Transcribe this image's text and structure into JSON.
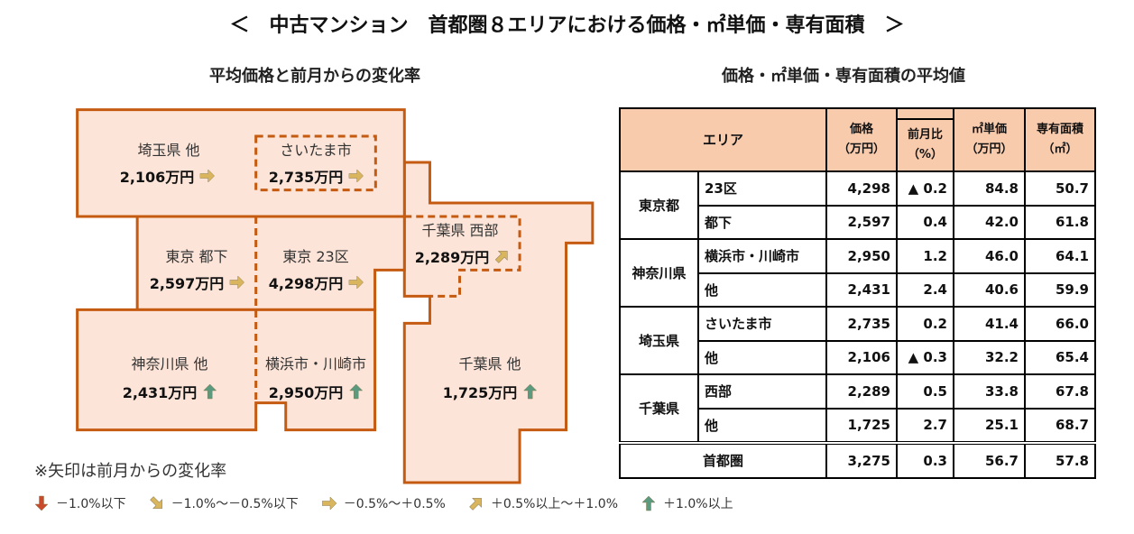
{
  "title": "＜　中古マンション　首都圏８エリアにおける価格・㎡単価・専有面積　＞",
  "map": {
    "subtitle": "平均価格と前月からの変化率",
    "regions": [
      {
        "name": "埼玉県 他",
        "value": "2,106万円",
        "arrow": "flat"
      },
      {
        "name": "さいたま市",
        "value": "2,735万円",
        "arrow": "flat"
      },
      {
        "name": "東京 都下",
        "value": "2,597万円",
        "arrow": "flat"
      },
      {
        "name": "東京 23区",
        "value": "4,298万円",
        "arrow": "flat"
      },
      {
        "name": "千葉県 西部",
        "value": "2,289万円",
        "arrow": "up-right"
      },
      {
        "name": "神奈川県 他",
        "value": "2,431万円",
        "arrow": "up"
      },
      {
        "name": "横浜市・川崎市",
        "value": "2,950万円",
        "arrow": "up"
      },
      {
        "name": "千葉県 他",
        "value": "1,725万円",
        "arrow": "up"
      }
    ],
    "note": "※矢印は前月からの変化率"
  },
  "legend": [
    {
      "arrow": "down",
      "label": "－1.0%以下",
      "color": "#c94a2b"
    },
    {
      "arrow": "down-right",
      "label": "－1.0%～－0.5%以下",
      "color": "#d9b55e"
    },
    {
      "arrow": "flat",
      "label": "－0.5%～＋0.5%",
      "color": "#d9b55e"
    },
    {
      "arrow": "up-right",
      "label": "＋0.5%以上～＋1.0%",
      "color": "#d9b55e"
    },
    {
      "arrow": "up",
      "label": "＋1.0%以上",
      "color": "#5b9a7f"
    }
  ],
  "table": {
    "subtitle": "価格・㎡単価・専有面積の平均値",
    "headers": {
      "area": "エリア",
      "price": "価格",
      "price_unit": "（万円）",
      "change": "前月比",
      "change_unit": "（%）",
      "unit_price": "㎡単価",
      "unit_price_unit": "（万円）",
      "size": "専有面積",
      "size_unit": "（㎡）"
    },
    "groups": [
      {
        "pref": "東京都",
        "rows": [
          {
            "area": "23区",
            "price": "4,298",
            "change": "▲ 0.2",
            "unit": "84.8",
            "size": "50.7"
          },
          {
            "area": "都下",
            "price": "2,597",
            "change": "0.4",
            "unit": "42.0",
            "size": "61.8"
          }
        ]
      },
      {
        "pref": "神奈川県",
        "rows": [
          {
            "area": "横浜市・川崎市",
            "price": "2,950",
            "change": "1.2",
            "unit": "46.0",
            "size": "64.1"
          },
          {
            "area": "他",
            "price": "2,431",
            "change": "2.4",
            "unit": "40.6",
            "size": "59.9"
          }
        ]
      },
      {
        "pref": "埼玉県",
        "rows": [
          {
            "area": "さいたま市",
            "price": "2,735",
            "change": "0.2",
            "unit": "41.4",
            "size": "66.0"
          },
          {
            "area": "他",
            "price": "2,106",
            "change": "▲ 0.3",
            "unit": "32.2",
            "size": "65.4"
          }
        ]
      },
      {
        "pref": "千葉県",
        "rows": [
          {
            "area": "西部",
            "price": "2,289",
            "change": "0.5",
            "unit": "33.8",
            "size": "67.8"
          },
          {
            "area": "他",
            "price": "1,725",
            "change": "2.7",
            "unit": "25.1",
            "size": "68.7"
          }
        ]
      }
    ],
    "total": {
      "area": "首都圏",
      "price": "3,275",
      "change": "0.3",
      "unit": "56.7",
      "size": "57.8"
    }
  },
  "colors": {
    "region_fill": "#fde4d8",
    "region_stroke": "#c55a11",
    "header_fill": "#f8cbad"
  }
}
